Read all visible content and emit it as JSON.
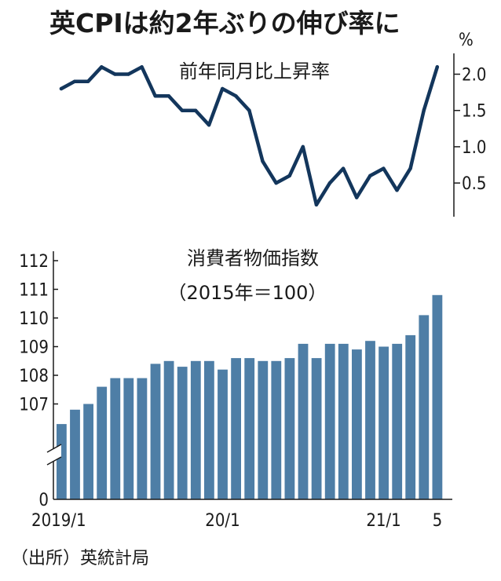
{
  "title": "英CPIは約2年ぶりの伸び率に",
  "source": "（出所）英統計局",
  "colors": {
    "line": "#13365c",
    "bar": "#4e7ea6",
    "axis": "#1a1a1a"
  },
  "chart_data": [
    {
      "type": "line",
      "title": "前年同月比上昇率",
      "unit": "%",
      "yticks": [
        "2.0",
        "1.5",
        "1.0",
        "0.5"
      ],
      "ylim": [
        0,
        2.2
      ],
      "x": [
        "2019/1",
        "2019/2",
        "2019/3",
        "2019/4",
        "2019/5",
        "2019/6",
        "2019/7",
        "2019/8",
        "2019/9",
        "2019/10",
        "2019/11",
        "2019/12",
        "2020/1",
        "2020/2",
        "2020/3",
        "2020/4",
        "2020/5",
        "2020/6",
        "2020/7",
        "2020/8",
        "2020/9",
        "2020/10",
        "2020/11",
        "2020/12",
        "2021/1",
        "2021/2",
        "2021/3",
        "2021/4",
        "2021/5"
      ],
      "values": [
        1.8,
        1.9,
        1.9,
        2.1,
        2.0,
        2.0,
        2.1,
        1.7,
        1.7,
        1.5,
        1.5,
        1.3,
        1.8,
        1.7,
        1.5,
        0.8,
        0.5,
        0.6,
        1.0,
        0.2,
        0.5,
        0.7,
        0.3,
        0.6,
        0.7,
        0.4,
        0.7,
        1.5,
        2.1
      ]
    },
    {
      "type": "bar",
      "title": "消費者物価指数",
      "subtitle": "（2015年＝100）",
      "yticks": [
        "112",
        "111",
        "110",
        "109",
        "108",
        "107",
        "0"
      ],
      "ylim": [
        106.5,
        112
      ],
      "axis_break": true,
      "xtick_labels": [
        "2019/1",
        "20/1",
        "21/1",
        "5"
      ],
      "categories": [
        "2019/1",
        "2019/2",
        "2019/3",
        "2019/4",
        "2019/5",
        "2019/6",
        "2019/7",
        "2019/8",
        "2019/9",
        "2019/10",
        "2019/11",
        "2019/12",
        "2020/1",
        "2020/2",
        "2020/3",
        "2020/4",
        "2020/5",
        "2020/6",
        "2020/7",
        "2020/8",
        "2020/9",
        "2020/10",
        "2020/11",
        "2020/12",
        "2021/1",
        "2021/2",
        "2021/3",
        "2021/4",
        "2021/5"
      ],
      "values": [
        106.3,
        106.8,
        107.0,
        107.6,
        107.9,
        107.9,
        107.9,
        108.4,
        108.5,
        108.3,
        108.5,
        108.5,
        108.2,
        108.6,
        108.6,
        108.5,
        108.5,
        108.6,
        109.1,
        108.6,
        109.1,
        109.1,
        108.9,
        109.2,
        109.0,
        109.1,
        109.4,
        110.1,
        110.8
      ]
    }
  ]
}
